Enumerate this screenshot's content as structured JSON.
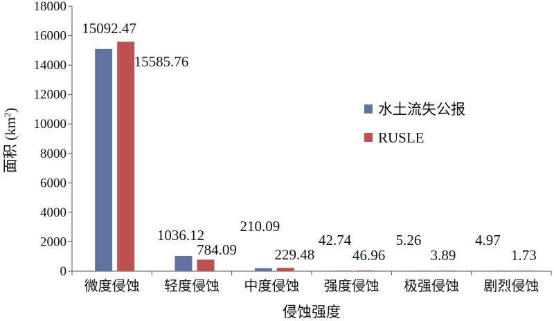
{
  "chart_data": {
    "type": "bar",
    "categories": [
      "微度侵蚀",
      "轻度侵蚀",
      "中度侵蚀",
      "强度侵蚀",
      "极强侵蚀",
      "剧烈侵蚀"
    ],
    "series": [
      {
        "name": "水土流失公报",
        "color": "#61729f",
        "values": [
          15092.47,
          1036.12,
          210.09,
          42.74,
          5.26,
          4.97
        ],
        "labels": [
          "15092.47",
          "1036.12",
          "210.09",
          "42.74",
          "5.26",
          "4.97"
        ]
      },
      {
        "name": "RUSLE",
        "color": "#bd5151",
        "values": [
          15585.76,
          784.09,
          229.48,
          46.96,
          3.89,
          1.73
        ],
        "labels": [
          "15585.76",
          "784.09",
          "229.48",
          "46.96",
          "3.89",
          "1.73"
        ]
      }
    ],
    "title": "",
    "xlabel": "侵蚀强度",
    "ylabel_main": "面积 (km",
    "ylabel_sup": "2",
    "ylabel_close": ")",
    "ylim": [
      0,
      18000
    ],
    "yticks": [
      0,
      2000,
      4000,
      6000,
      8000,
      10000,
      12000,
      14000,
      16000,
      18000
    ],
    "grid": false,
    "legend_position": "right"
  }
}
